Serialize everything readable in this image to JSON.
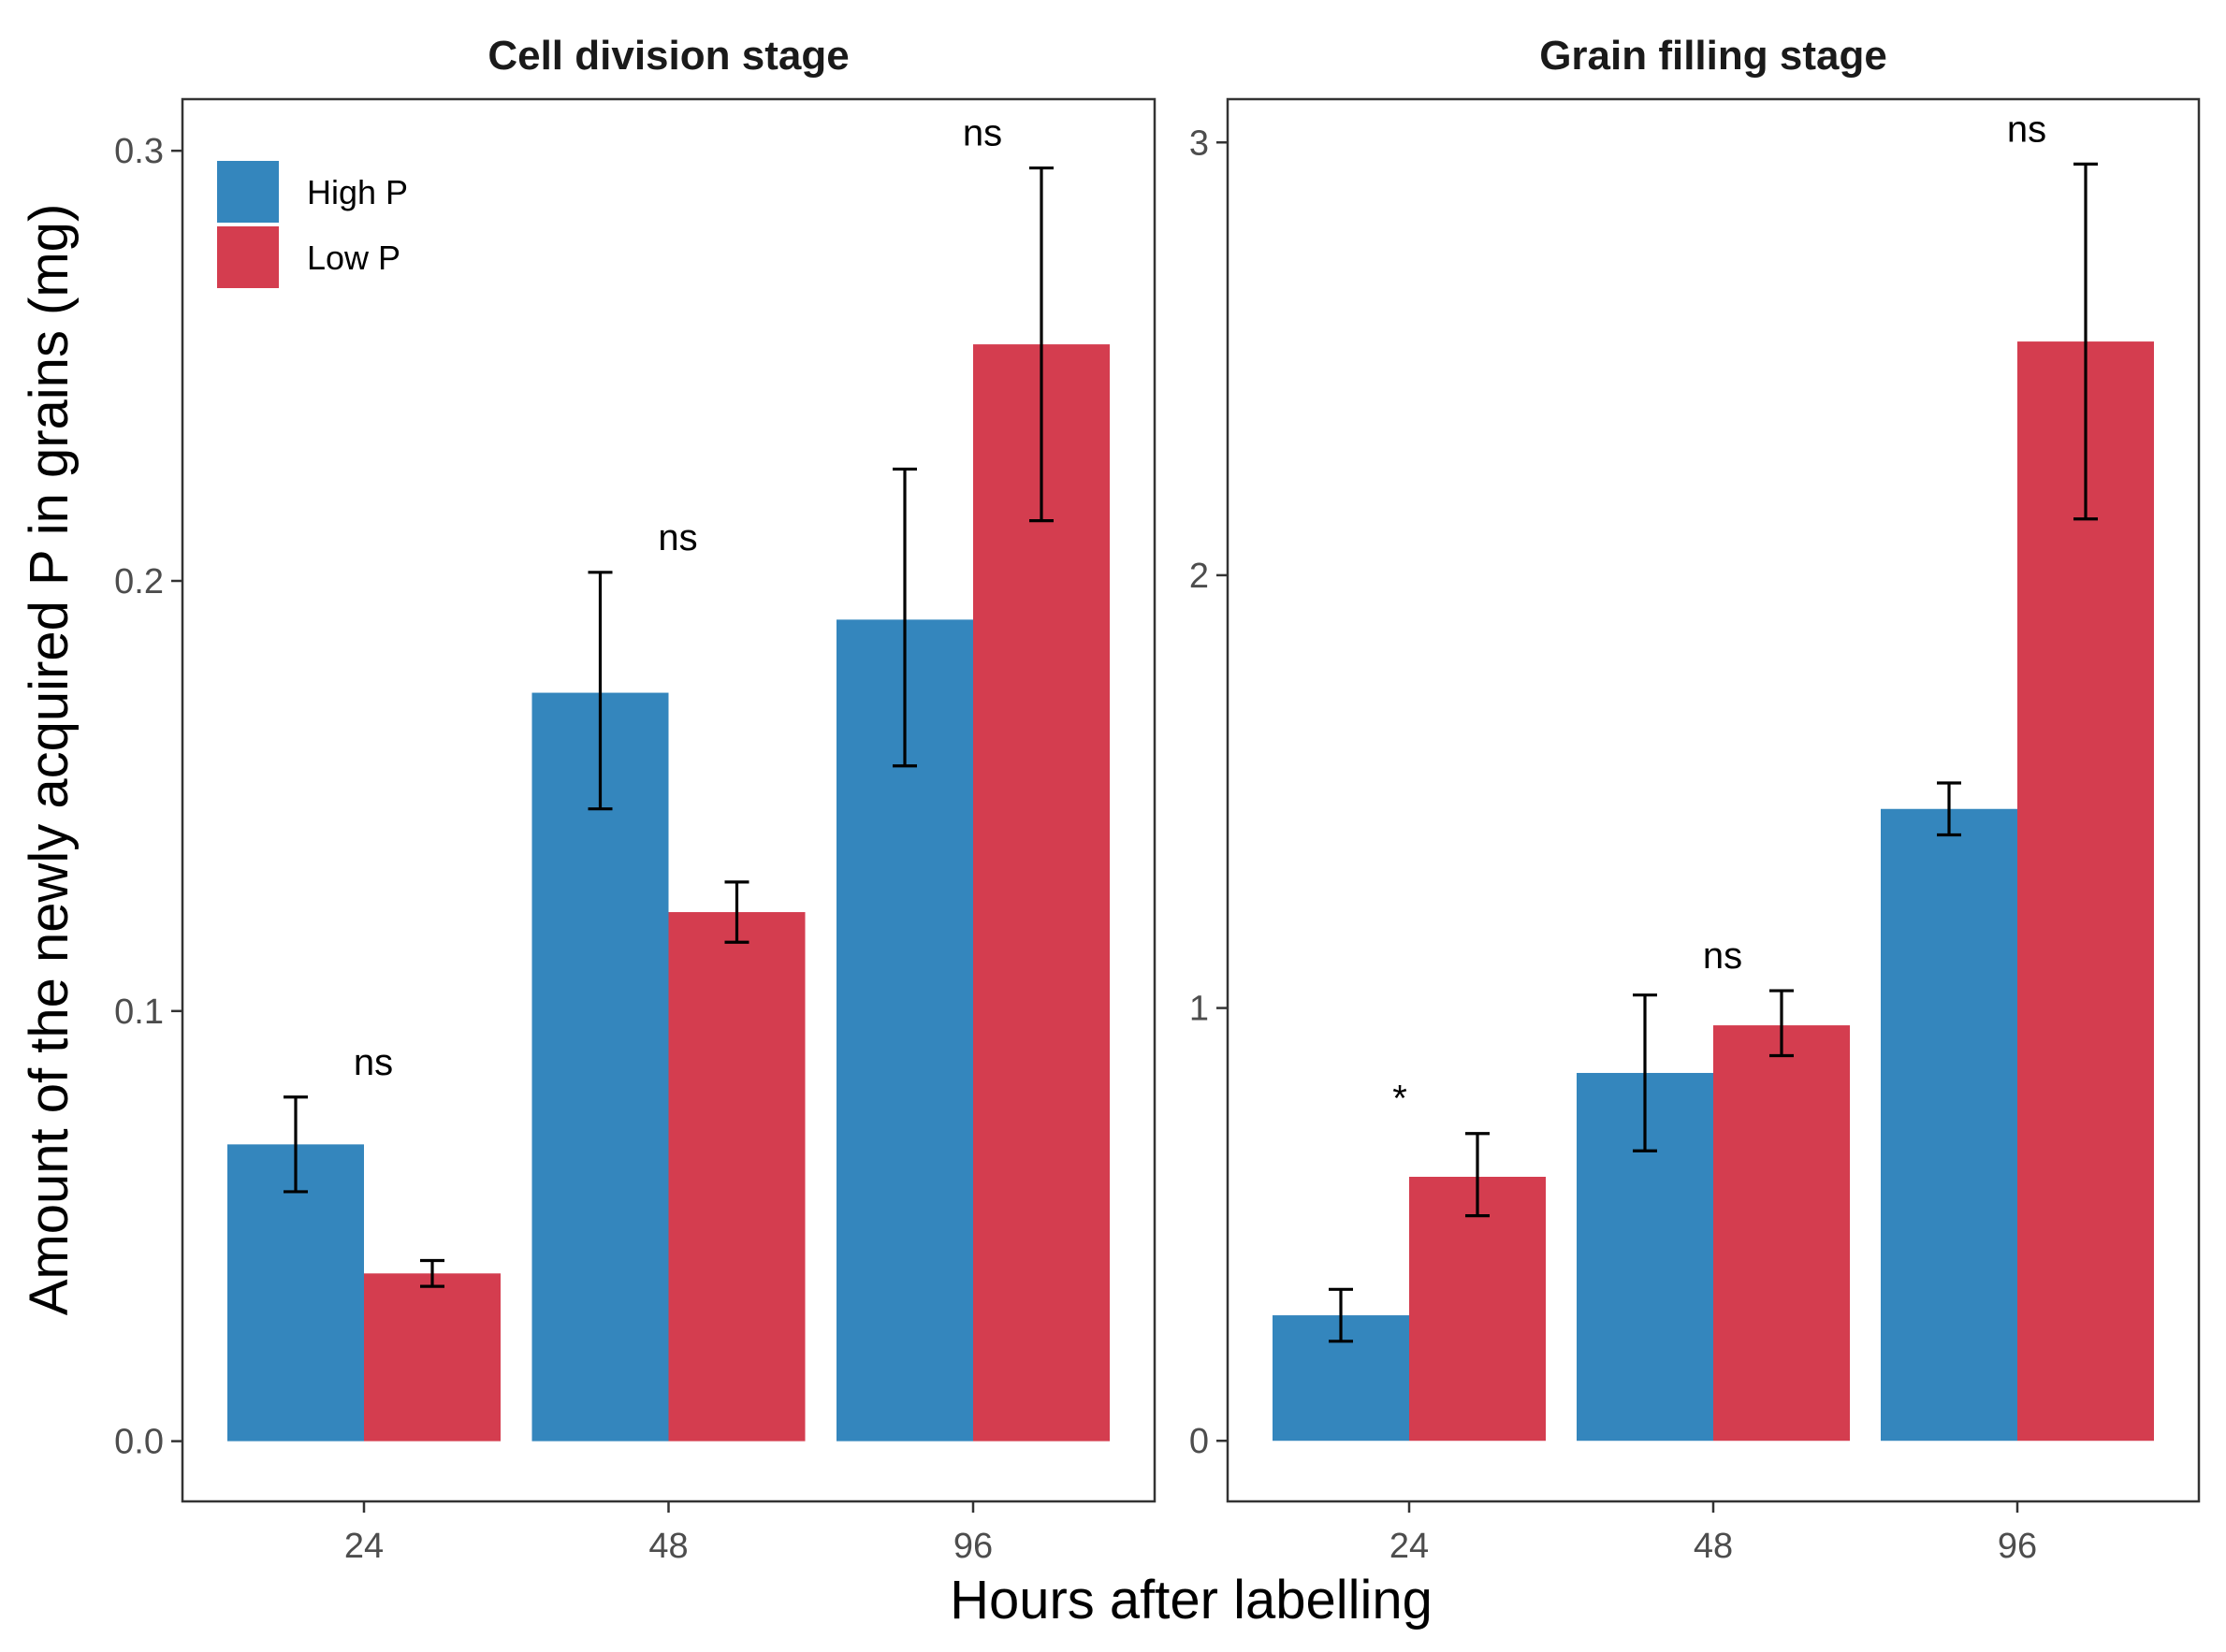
{
  "chart_data": [
    {
      "type": "bar",
      "title": "Cell division stage",
      "categories": [
        "24",
        "48",
        "96"
      ],
      "series": [
        {
          "name": "High P",
          "color": "#3486BD",
          "values": [
            0.069,
            0.174,
            0.191
          ],
          "err_low": [
            0.058,
            0.147,
            0.157
          ],
          "err_high": [
            0.08,
            0.202,
            0.226
          ]
        },
        {
          "name": "Low P",
          "color": "#D43D4F",
          "values": [
            0.039,
            0.123,
            0.255
          ],
          "err_low": [
            0.036,
            0.116,
            0.214
          ],
          "err_high": [
            0.042,
            0.13,
            0.296
          ]
        }
      ],
      "significance": [
        "ns",
        "ns",
        "ns"
      ],
      "ylim": [
        -0.014,
        0.312
      ],
      "yticks": [
        0.0,
        0.1,
        0.2,
        0.3
      ],
      "ytick_labels": [
        "0.0",
        "0.1",
        "0.2",
        "0.3"
      ]
    },
    {
      "type": "bar",
      "title": "Grain filling stage",
      "categories": [
        "24",
        "48",
        "96"
      ],
      "series": [
        {
          "name": "High P",
          "color": "#3486BD",
          "values": [
            0.29,
            0.85,
            1.46
          ],
          "err_low": [
            0.23,
            0.67,
            1.4
          ],
          "err_high": [
            0.35,
            1.03,
            1.52
          ]
        },
        {
          "name": "Low P",
          "color": "#D43D4F",
          "values": [
            0.61,
            0.96,
            2.54
          ],
          "err_low": [
            0.52,
            0.89,
            2.13
          ],
          "err_high": [
            0.71,
            1.04,
            2.95
          ]
        }
      ],
      "significance": [
        "*",
        "ns",
        "ns"
      ],
      "ylim": [
        -0.14,
        3.1
      ],
      "yticks": [
        0,
        1,
        2,
        3
      ],
      "ytick_labels": [
        "0",
        "1",
        "2",
        "3"
      ]
    }
  ],
  "legend": {
    "items": [
      {
        "label": "High P",
        "color": "#3486BD"
      },
      {
        "label": "Low P",
        "color": "#D43D4F"
      }
    ],
    "position": "top-left"
  },
  "xlabel": "Hours after labelling",
  "ylabel": "Amount of the newly acquired P in grains (mg)"
}
